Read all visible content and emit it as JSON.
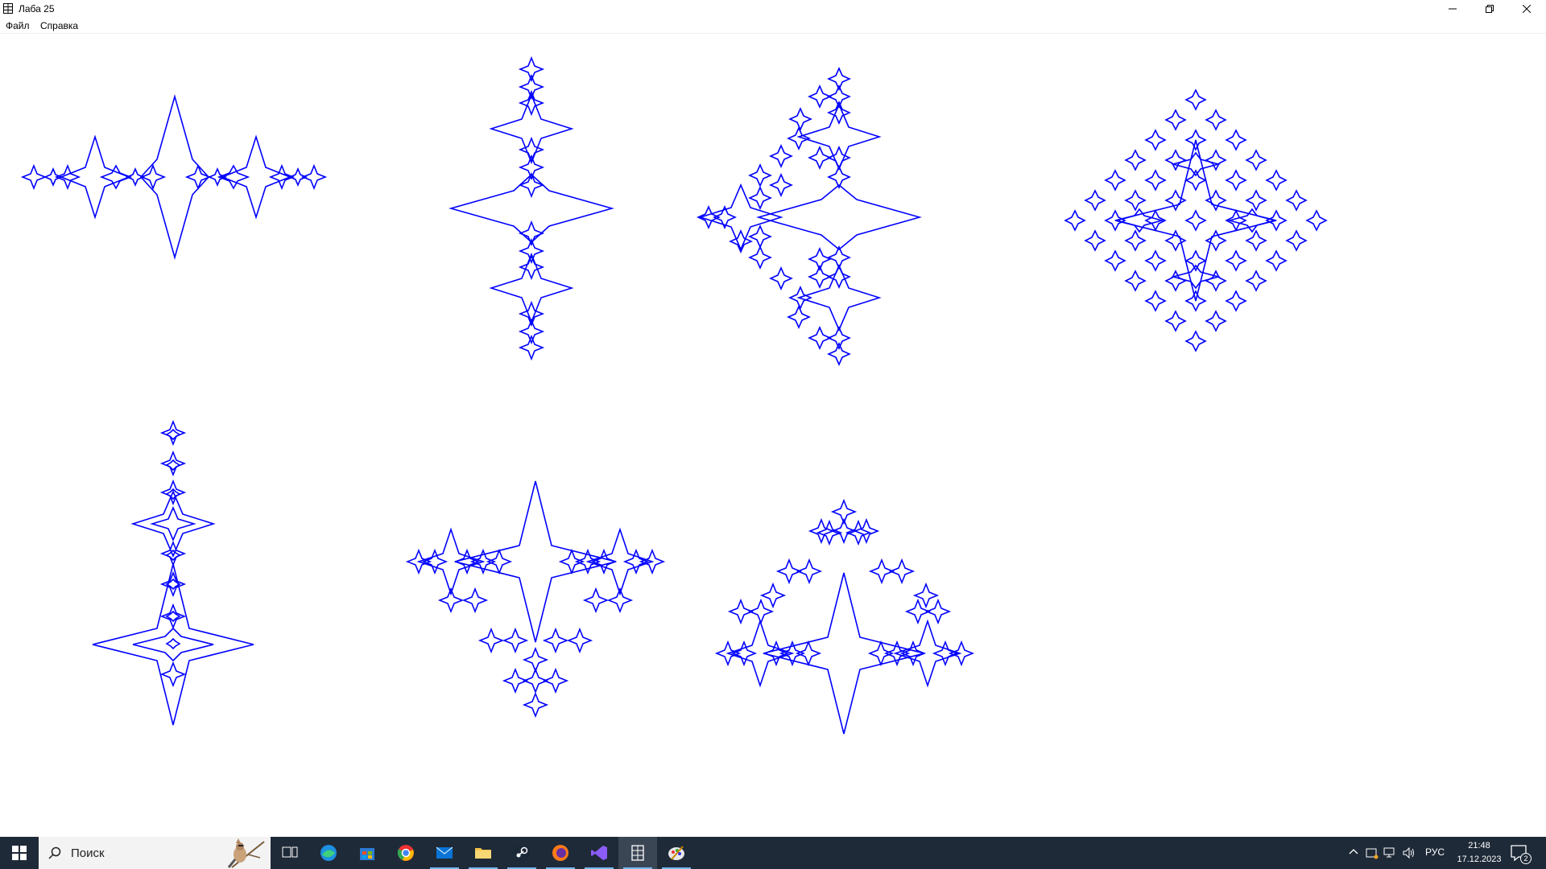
{
  "window": {
    "title": "Лаба 25"
  },
  "menu": [
    {
      "label": "Файл"
    },
    {
      "label": "Справка"
    }
  ],
  "canvas": {
    "stroke_color": "#0000ff",
    "background": "#ffffff",
    "fractals": [
      {
        "name": "fractal-1",
        "kind": "horizontal-chain"
      },
      {
        "name": "fractal-2",
        "kind": "vertical-chain"
      },
      {
        "name": "fractal-3",
        "kind": "diagonal-diamond"
      },
      {
        "name": "fractal-4",
        "kind": "full-diamond"
      },
      {
        "name": "fractal-5",
        "kind": "vertical-stack"
      },
      {
        "name": "fractal-6",
        "kind": "inverted-triangle"
      },
      {
        "name": "fractal-7",
        "kind": "triangle"
      }
    ]
  },
  "taskbar": {
    "search_placeholder": "Поиск",
    "apps": [
      {
        "name": "task-view",
        "icon": "task-view-icon",
        "running": false
      },
      {
        "name": "edge",
        "icon": "edge-icon",
        "running": false
      },
      {
        "name": "store",
        "icon": "store-icon",
        "running": false
      },
      {
        "name": "chrome",
        "icon": "chrome-icon",
        "running": false
      },
      {
        "name": "mail",
        "icon": "mail-icon",
        "running": true
      },
      {
        "name": "explorer",
        "icon": "folder-icon",
        "running": true
      },
      {
        "name": "steam",
        "icon": "steam-icon",
        "running": true
      },
      {
        "name": "firefox",
        "icon": "firefox-icon",
        "running": true
      },
      {
        "name": "visual-studio",
        "icon": "visual-studio-icon",
        "running": true
      },
      {
        "name": "laba25",
        "icon": "window-app-icon",
        "running": true,
        "active": true
      },
      {
        "name": "paint",
        "icon": "paint-icon",
        "running": true
      }
    ],
    "tray": {
      "language": "РУС",
      "time": "21:48",
      "date": "17.12.2023",
      "notifications": "2"
    }
  }
}
